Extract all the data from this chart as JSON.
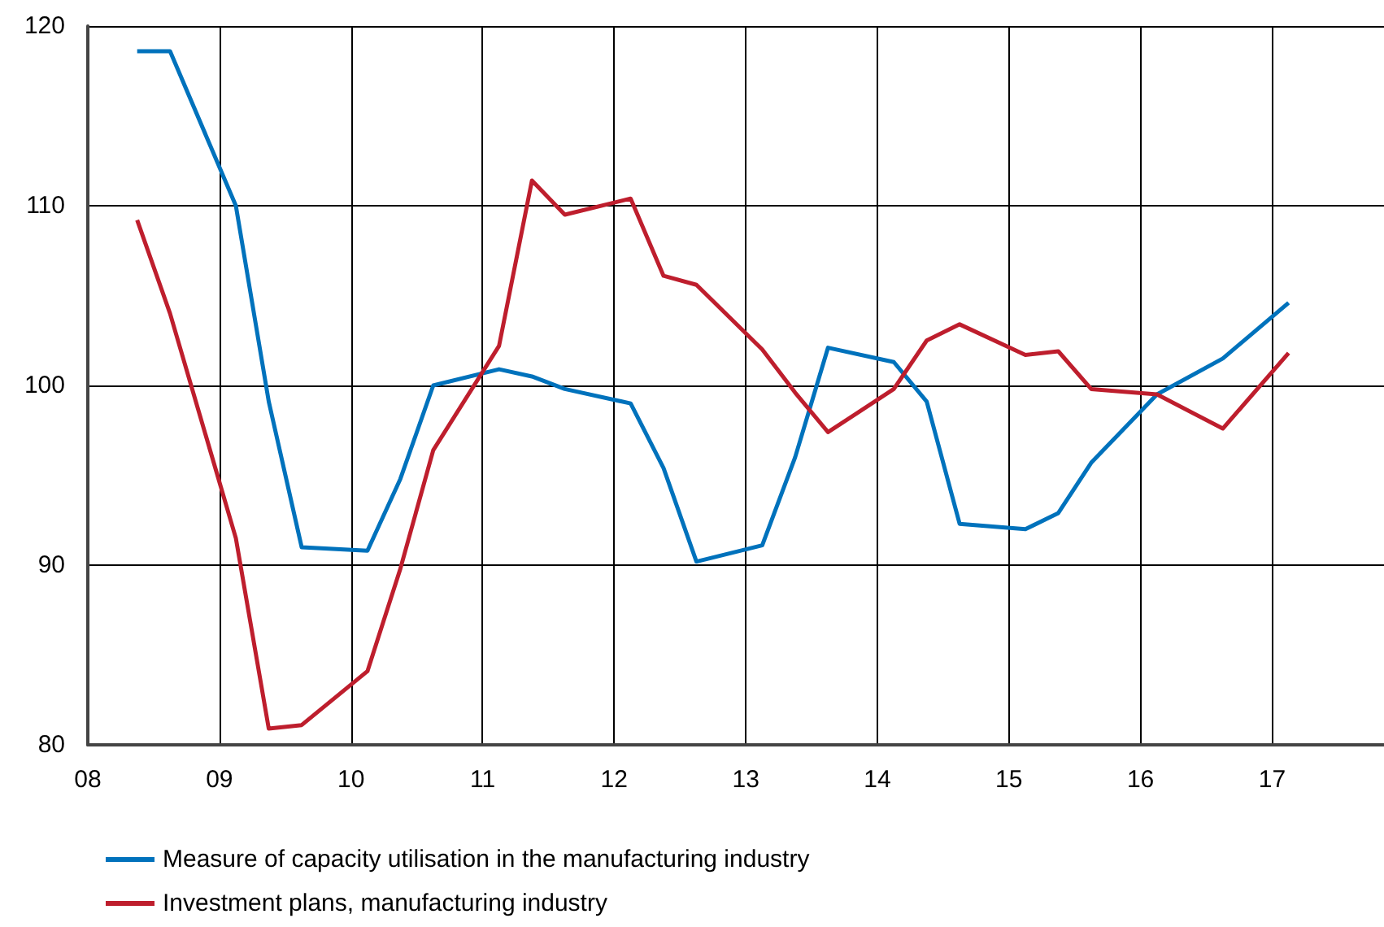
{
  "chart_data": {
    "type": "line",
    "x": [
      8.375,
      8.625,
      9.125,
      9.375,
      9.625,
      10.125,
      10.375,
      10.625,
      11.125,
      11.375,
      11.625,
      12.125,
      12.375,
      12.625,
      13.125,
      13.375,
      13.625,
      14.125,
      14.375,
      14.625,
      15.125,
      15.375,
      15.625,
      16.125,
      16.625,
      17.125
    ],
    "series": [
      {
        "name": "Measure of capacity utilisation in the manufacturing industry",
        "color": "#0072bc",
        "values": [
          118.6,
          118.6,
          110,
          99.1,
          91,
          90.8,
          94.8,
          100,
          100.9,
          100.5,
          99.8,
          99,
          95.4,
          90.2,
          91.1,
          96,
          102.1,
          101.3,
          99.1,
          92.3,
          92,
          92.9,
          95.7,
          99.5,
          101.5,
          104.6
        ]
      },
      {
        "name": "Investment plans, manufacturing industry",
        "color": "#be1e2d",
        "values": [
          109.2,
          104,
          91.5,
          80.9,
          81.1,
          84.1,
          89.8,
          96.4,
          102.2,
          111.4,
          109.5,
          110.4,
          106.1,
          105.6,
          102,
          99.6,
          97.4,
          99.8,
          102.5,
          103.4,
          101.7,
          101.9,
          99.8,
          99.5,
          97.6,
          101.8
        ]
      }
    ],
    "xlim": [
      8,
      17.85
    ],
    "xticks": [
      {
        "value": 8,
        "label": "08"
      },
      {
        "value": 9,
        "label": "09"
      },
      10,
      11,
      12,
      13,
      14,
      15,
      16,
      17
    ],
    "ylim": [
      80,
      120
    ],
    "yticks": [
      80,
      90,
      100,
      110,
      120
    ],
    "grid": true,
    "legend": "bottom",
    "marker": "none",
    "line_style": "solid"
  }
}
